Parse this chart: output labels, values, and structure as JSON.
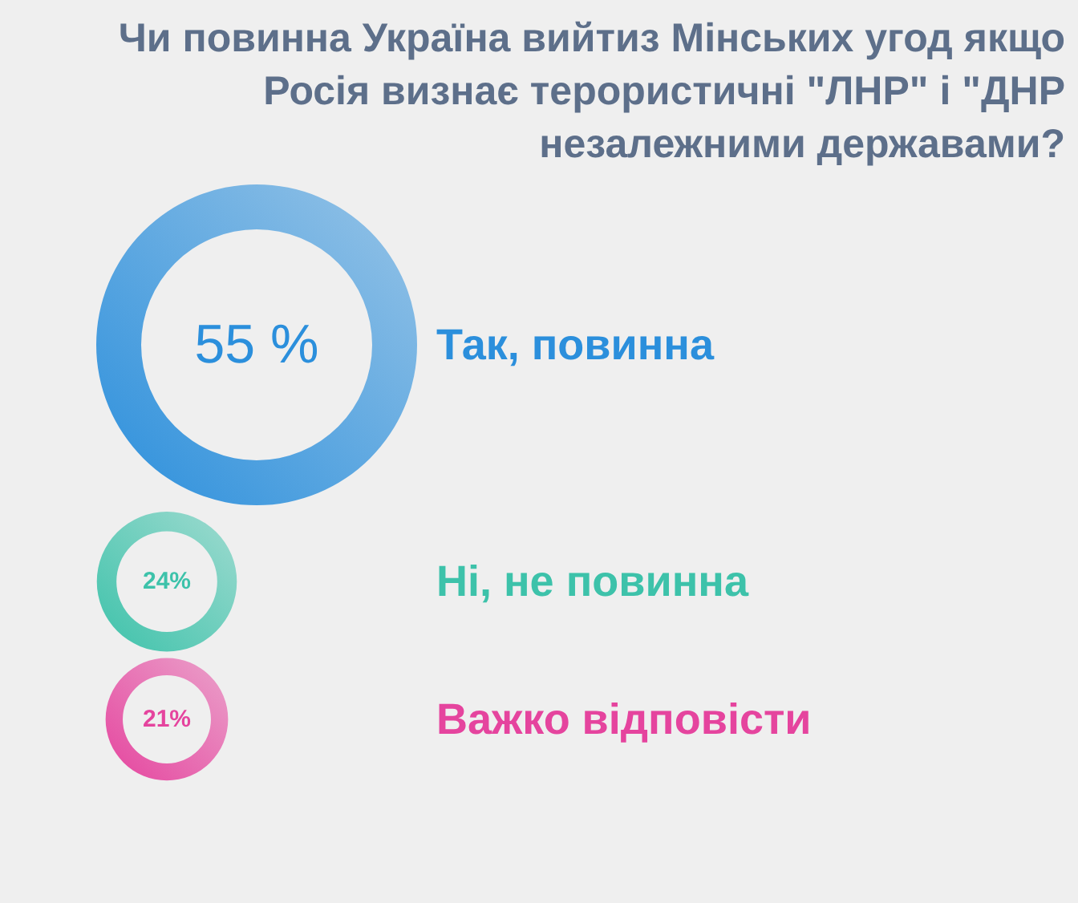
{
  "chart_data": {
    "type": "other",
    "title": "Чи повинна Україна вийтиз Мінських угод якщо Росія визнає терористичні \"ЛНР\" і \"ДНР незалежними державами?",
    "categories": [
      "Так, повинна",
      "Ні, не повинна",
      "Важко відповісти"
    ],
    "values": [
      55,
      24,
      21
    ],
    "value_labels": [
      "55 %",
      "24%",
      "21%"
    ],
    "colors": [
      "#2b8fdc",
      "#3dc2aa",
      "#e5449e"
    ]
  }
}
